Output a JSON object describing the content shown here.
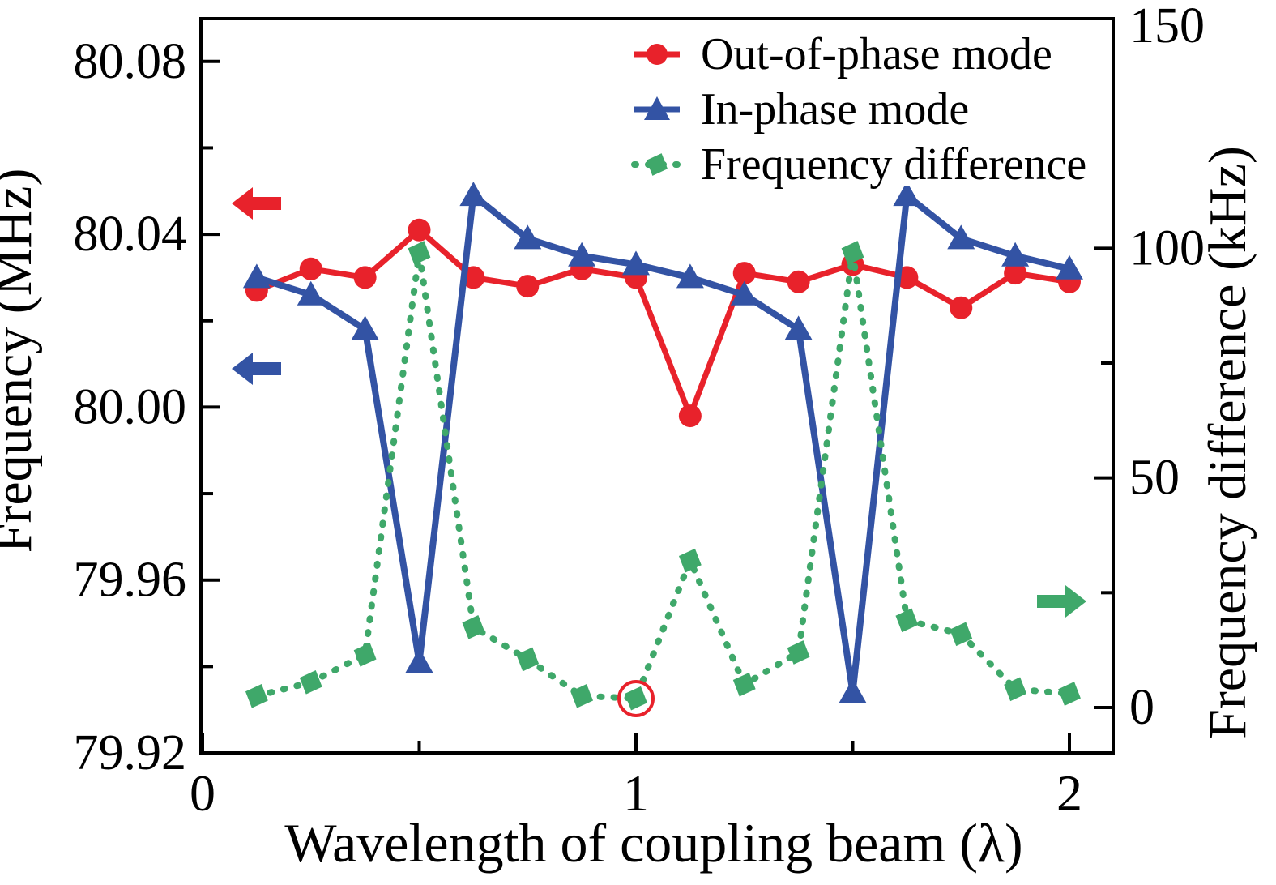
{
  "figure": {
    "background": "#ffffff"
  },
  "colors": {
    "red": "#e8222b",
    "blue": "#3353a4",
    "green": "#3fa86a",
    "black": "#000000"
  },
  "axes": {
    "x": {
      "label": "Wavelength of coupling beam (λ)",
      "tick_labels": [
        "0",
        "1",
        "2"
      ],
      "tick_values": [
        0,
        1,
        2
      ],
      "minor_tick_values": [
        0.5,
        1.5
      ],
      "range": [
        0,
        2.1
      ]
    },
    "y_left": {
      "label": "Frequency (MHz)",
      "tick_labels": [
        "80.08",
        "80.04",
        "80.00",
        "79.96",
        "79.92"
      ],
      "tick_values": [
        80.08,
        80.04,
        80.0,
        79.96,
        79.92
      ],
      "minor_tick_values": [
        80.06,
        80.02,
        79.98,
        79.94
      ],
      "range": [
        79.92,
        80.09
      ]
    },
    "y_right": {
      "label": "Frequency difference (kHz)",
      "tick_labels": [
        "150",
        "100",
        "50",
        "0"
      ],
      "tick_values": [
        150,
        100,
        50,
        0
      ],
      "minor_tick_values": [
        125,
        75,
        25
      ],
      "range": [
        -10,
        150
      ]
    }
  },
  "legend": {
    "items": [
      {
        "label": "Out-of-phase mode",
        "color": "#e8222b",
        "marker": "circle",
        "line": "solid"
      },
      {
        "label": "In-phase mode",
        "color": "#3353a4",
        "marker": "triangle",
        "line": "solid"
      },
      {
        "label": "Frequency difference",
        "color": "#3fa86a",
        "marker": "diamond",
        "line": "dotted"
      }
    ]
  },
  "annotations": {
    "red_left_arrow": {
      "direction": "left",
      "refers_to": "Out-of-phase mode vs left axis",
      "color": "#e8222b"
    },
    "blue_left_arrow": {
      "direction": "left",
      "refers_to": "In-phase mode vs left axis",
      "color": "#3353a4"
    },
    "green_right_arrow": {
      "direction": "right",
      "refers_to": "Frequency difference vs right axis",
      "color": "#3fa86a"
    },
    "circled_point": {
      "series": "Frequency difference",
      "x": 1.0,
      "value_kHz": 2,
      "color": "#e8222b"
    }
  },
  "chart_data": {
    "type": "line",
    "title": "",
    "xlabel": "Wavelength of coupling beam (λ)",
    "ylabel_left": "Frequency (MHz)",
    "ylabel_right": "Frequency difference (kHz)",
    "x": [
      0.125,
      0.25,
      0.375,
      0.5,
      0.625,
      0.75,
      0.875,
      1.0,
      1.125,
      1.25,
      1.375,
      1.5,
      1.625,
      1.75,
      1.875,
      2.0
    ],
    "series": [
      {
        "name": "Out-of-phase mode",
        "axis": "left",
        "unit": "MHz",
        "color": "#e8222b",
        "marker": "circle",
        "line_style": "solid",
        "values": [
          80.027,
          80.032,
          80.03,
          80.041,
          80.03,
          80.028,
          80.032,
          80.03,
          79.998,
          80.031,
          80.029,
          80.033,
          80.03,
          80.023,
          80.031,
          80.029
        ]
      },
      {
        "name": "In-phase mode",
        "axis": "left",
        "unit": "MHz",
        "color": "#3353a4",
        "marker": "triangle",
        "line_style": "solid",
        "values": [
          80.03,
          80.026,
          80.018,
          79.941,
          80.049,
          80.039,
          80.035,
          80.033,
          80.03,
          80.026,
          80.018,
          79.934,
          80.049,
          80.039,
          80.035,
          80.032
        ]
      },
      {
        "name": "Frequency difference",
        "axis": "right",
        "unit": "kHz",
        "color": "#3fa86a",
        "marker": "diamond",
        "line_style": "dotted",
        "values": [
          2.5,
          5.5,
          11.5,
          99,
          17.5,
          10.5,
          2.5,
          2,
          32,
          5,
          12,
          99,
          19,
          16,
          4,
          3
        ]
      }
    ],
    "xlim": [
      0,
      2.1
    ],
    "ylim_left": [
      79.92,
      80.09
    ],
    "ylim_right": [
      -10,
      150
    ],
    "grid": false,
    "legend_position": "upper right"
  }
}
